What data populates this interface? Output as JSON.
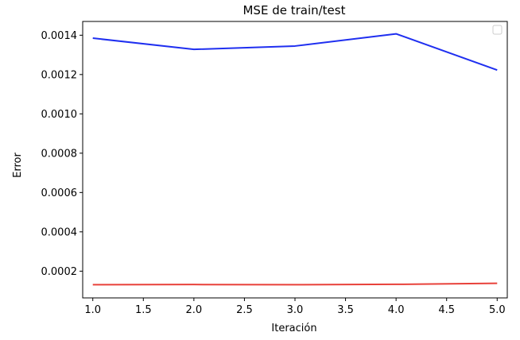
{
  "chart_data": {
    "type": "line",
    "title": "MSE de train/test",
    "xlabel": "Iteración",
    "ylabel": "Error",
    "x": [
      1.0,
      2.0,
      3.0,
      4.0,
      5.0
    ],
    "xlim": [
      0.9,
      5.1
    ],
    "ylim": [
      6.4e-05,
      0.00147
    ],
    "xticks": [
      "1.0",
      "1.5",
      "2.0",
      "2.5",
      "3.0",
      "3.5",
      "4.0",
      "4.5",
      "5.0"
    ],
    "yticks": [
      "0.0002",
      "0.0004",
      "0.0006",
      "0.0008",
      "0.0010",
      "0.0012",
      "0.0014"
    ],
    "grid": false,
    "legend": "top-right (empty)",
    "series": [
      {
        "color": "#1f2ff0",
        "values": [
          0.001385,
          0.001328,
          0.001345,
          0.001407,
          0.001223
        ]
      },
      {
        "color": "#e8413a",
        "values": [
          0.000131,
          0.000132,
          0.000131,
          0.000133,
          0.000138
        ]
      }
    ]
  }
}
